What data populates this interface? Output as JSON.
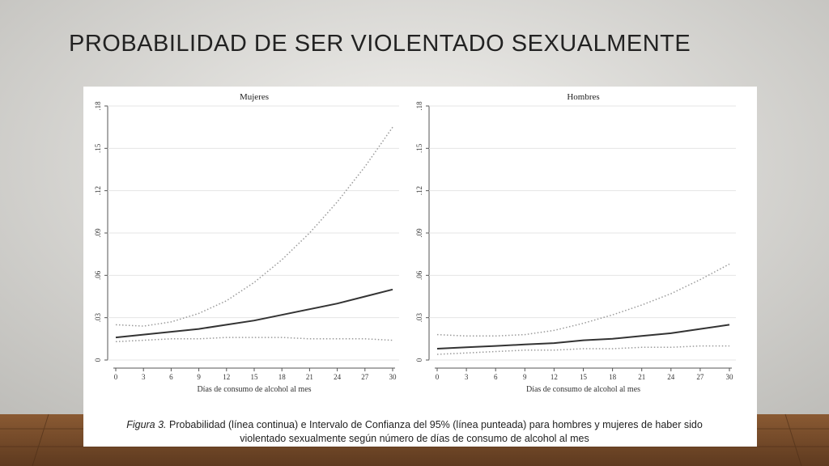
{
  "slide_title": "PROBABILIDAD DE SER VIOLENTADO SEXUALMENTE",
  "caption": {
    "label": "Figura 3.",
    "lines": [
      "Probabilidad (línea continua) e Intervalo de Confianza del 95% (línea punteada) para hombres y mujeres de haber sido",
      "violentado sexualmente según número de días de consumo de alcohol al mes"
    ]
  },
  "chart_data": [
    {
      "type": "line",
      "title": "Mujeres",
      "x_label": "Días de consumo de alcohol al mes",
      "x": [
        0,
        3,
        6,
        9,
        12,
        15,
        18,
        21,
        24,
        27,
        30
      ],
      "xlim": [
        0,
        30
      ],
      "xticks": [
        0,
        3,
        6,
        9,
        12,
        15,
        18,
        21,
        24,
        27,
        30
      ],
      "ylim": [
        0,
        0.18
      ],
      "yticks": [
        0,
        {
          "value": 0.03,
          "label": ".03"
        },
        {
          "value": 0.06,
          "label": ".06"
        },
        {
          "value": 0.09,
          "label": ".09"
        },
        {
          "value": 0.12,
          "label": ".12"
        },
        {
          "value": 0.15,
          "label": ".15"
        },
        {
          "value": 0.18,
          "label": ".18"
        }
      ],
      "grid": true,
      "series": [
        {
          "style": "solid",
          "color": "#333333",
          "values": [
            0.016,
            0.018,
            0.02,
            0.022,
            0.025,
            0.028,
            0.032,
            0.036,
            0.04,
            0.045,
            0.05
          ]
        },
        {
          "style": "dotted",
          "color": "#9a9a9a",
          "values": [
            0.025,
            0.024,
            0.027,
            0.033,
            0.042,
            0.055,
            0.071,
            0.09,
            0.112,
            0.137,
            0.165
          ]
        },
        {
          "style": "dotted",
          "color": "#9a9a9a",
          "values": [
            0.013,
            0.014,
            0.015,
            0.015,
            0.016,
            0.016,
            0.016,
            0.015,
            0.015,
            0.015,
            0.014
          ]
        }
      ]
    },
    {
      "type": "line",
      "title": "Hombres",
      "x_label": "Días de consumo de alcohol al mes",
      "x": [
        0,
        3,
        6,
        9,
        12,
        15,
        18,
        21,
        24,
        27,
        30
      ],
      "xlim": [
        0,
        30
      ],
      "xticks": [
        0,
        3,
        6,
        9,
        12,
        15,
        18,
        21,
        24,
        27,
        30
      ],
      "ylim": [
        0,
        0.18
      ],
      "yticks": [
        0,
        {
          "value": 0.03,
          "label": ".03"
        },
        {
          "value": 0.06,
          "label": ".06"
        },
        {
          "value": 0.09,
          "label": ".09"
        },
        {
          "value": 0.12,
          "label": ".12"
        },
        {
          "value": 0.15,
          "label": ".15"
        },
        {
          "value": 0.18,
          "label": ".18"
        }
      ],
      "grid": true,
      "series": [
        {
          "style": "solid",
          "color": "#333333",
          "values": [
            0.008,
            0.009,
            0.01,
            0.011,
            0.012,
            0.014,
            0.015,
            0.017,
            0.019,
            0.022,
            0.025
          ]
        },
        {
          "style": "dotted",
          "color": "#9a9a9a",
          "values": [
            0.018,
            0.017,
            0.017,
            0.018,
            0.021,
            0.026,
            0.032,
            0.039,
            0.047,
            0.057,
            0.068
          ]
        },
        {
          "style": "dotted",
          "color": "#9a9a9a",
          "values": [
            0.004,
            0.005,
            0.006,
            0.007,
            0.007,
            0.008,
            0.008,
            0.009,
            0.009,
            0.01,
            0.01
          ]
        }
      ]
    }
  ]
}
